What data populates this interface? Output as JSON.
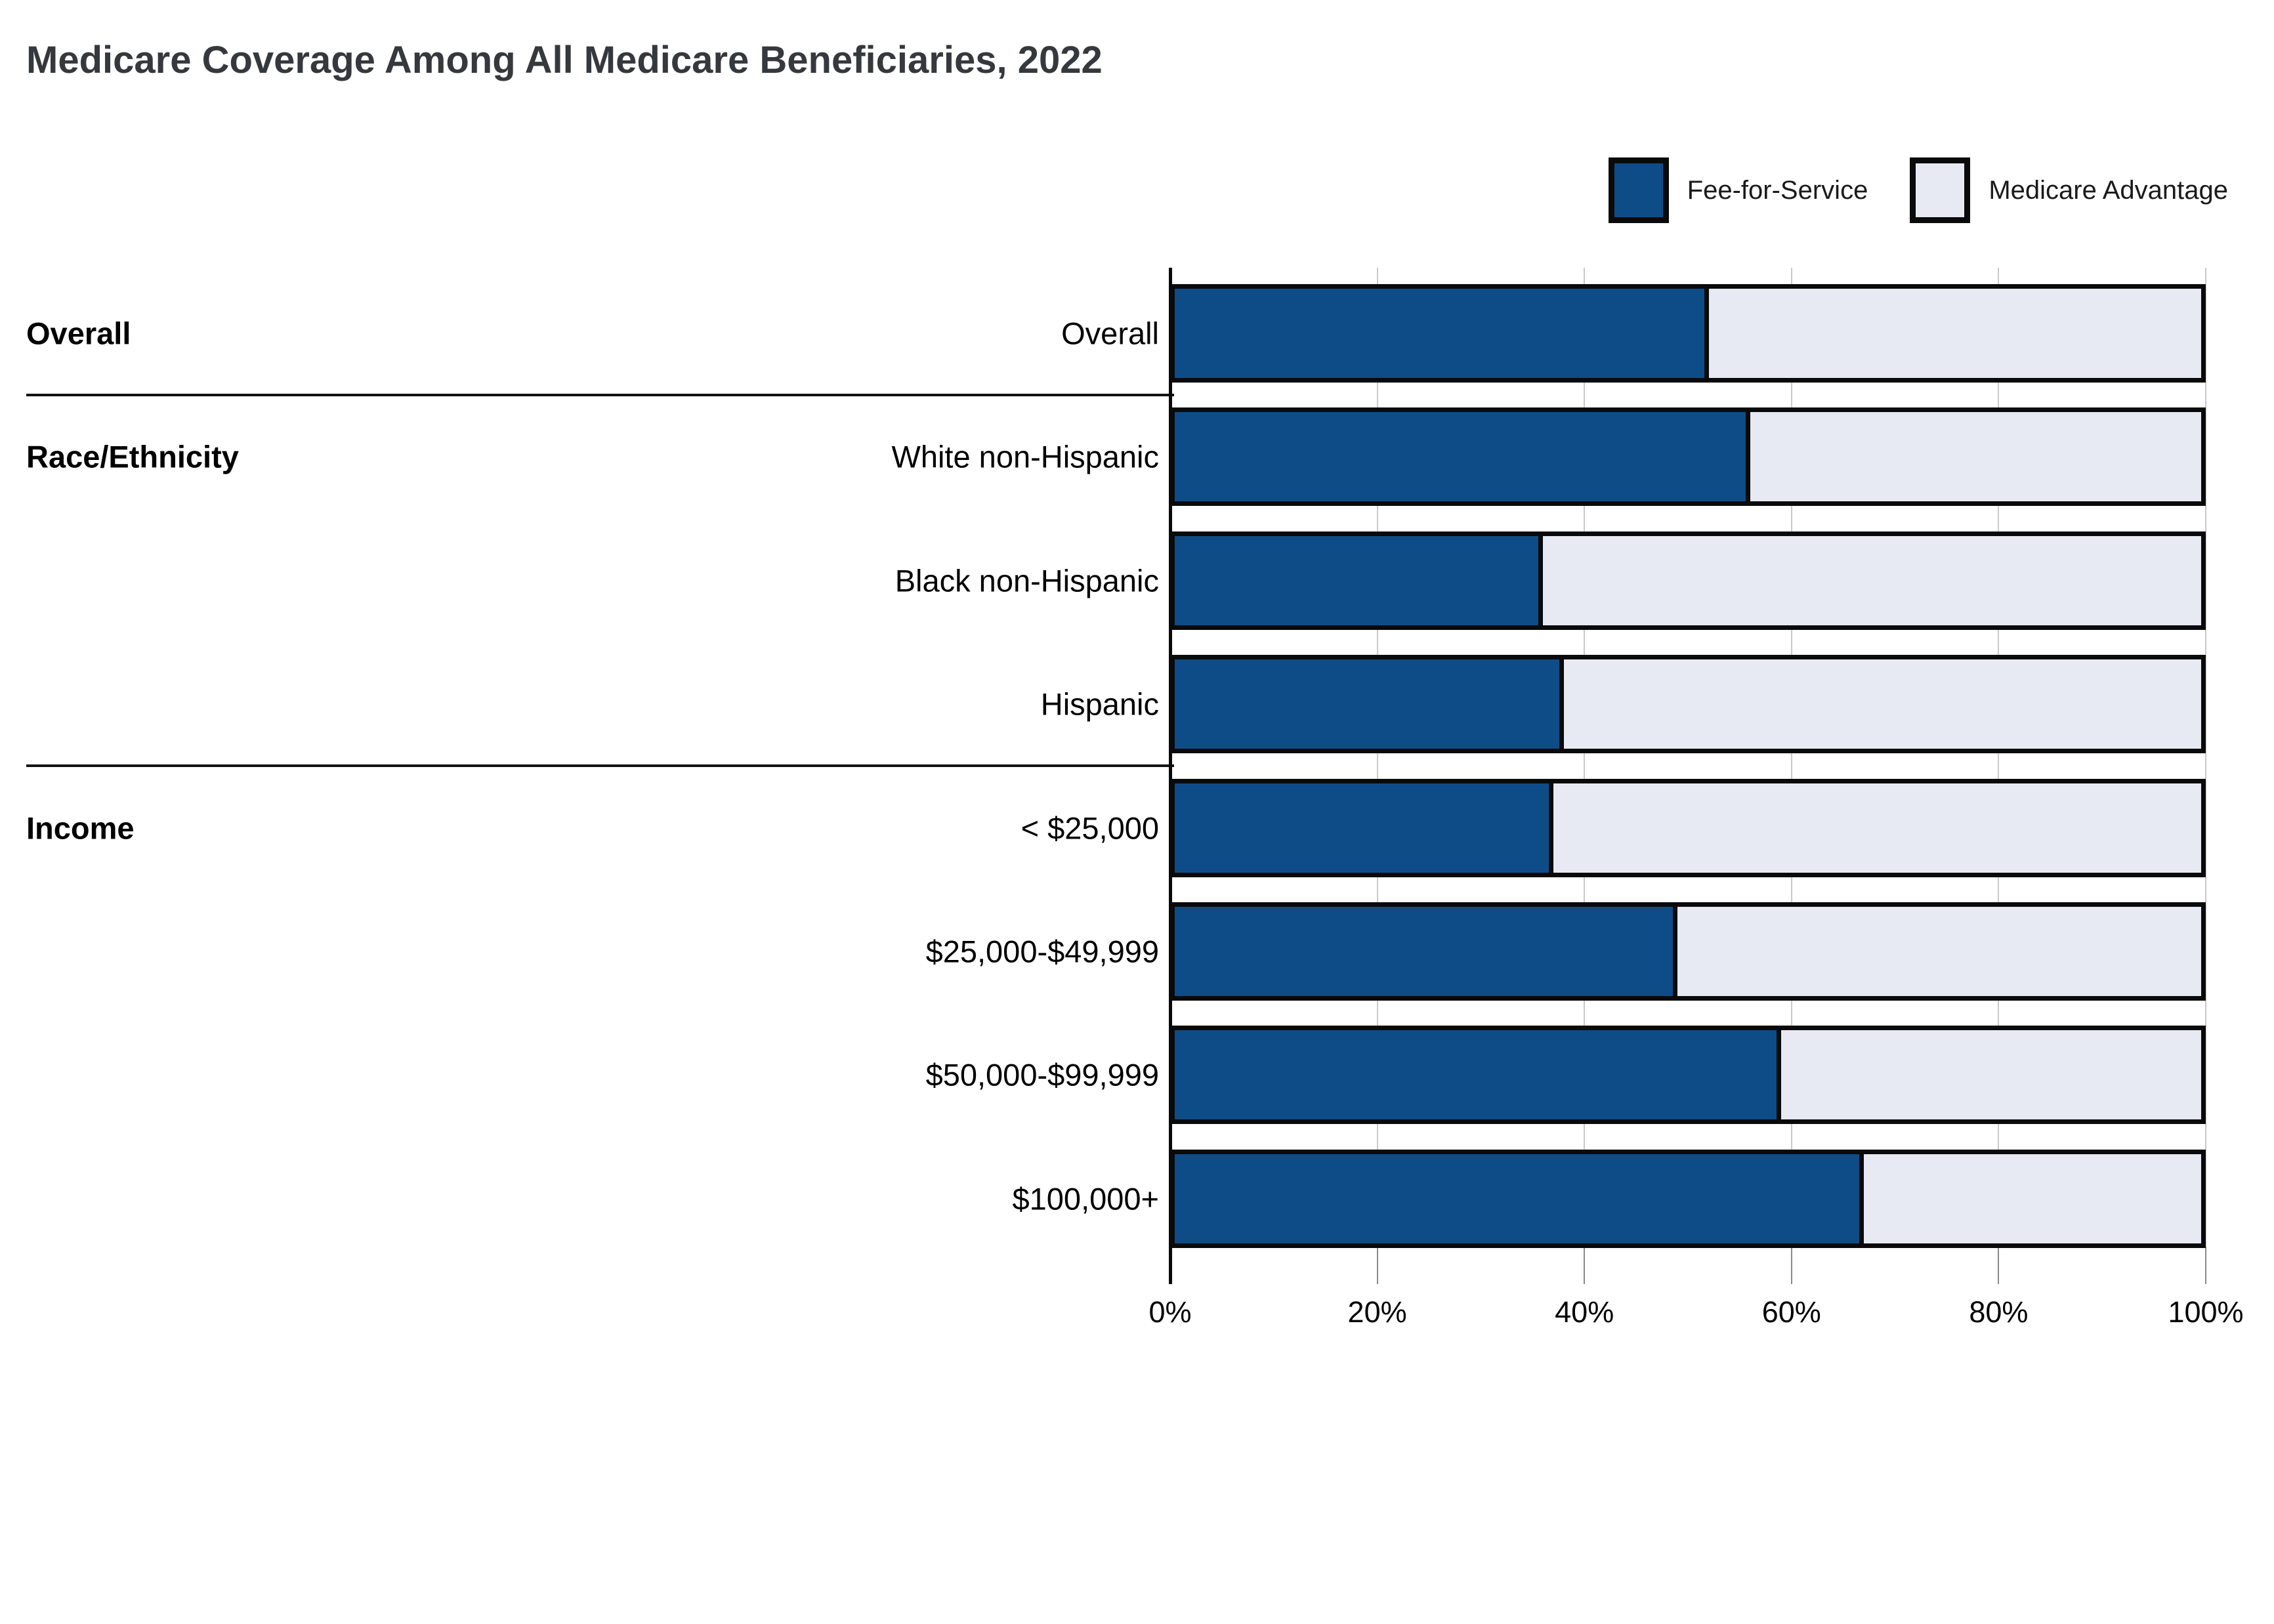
{
  "title": "Medicare Coverage Among All Medicare Beneficiaries, 2022",
  "legend": {
    "position": "top-right",
    "items": [
      {
        "label": "Fee-for-Service",
        "color": "#0e4c87"
      },
      {
        "label": "Medicare Advantage",
        "color": "#e7eaf2"
      }
    ]
  },
  "chart_data": {
    "type": "bar",
    "orientation": "horizontal",
    "stacked": true,
    "unit": "percent",
    "title": "Medicare Coverage Among All Medicare Beneficiaries, 2022",
    "categories": [
      "Overall",
      "White non-Hispanic",
      "Black non-Hispanic",
      "Hispanic",
      "< $25,000",
      "$25,000-$49,999",
      "$50,000-$99,999",
      "$100,000+"
    ],
    "series": [
      {
        "name": "Fee-for-Service",
        "color": "#0e4c87",
        "values": [
          52,
          56,
          36,
          38,
          37,
          49,
          59,
          67
        ]
      },
      {
        "name": "Medicare Advantage",
        "color": "#e7eaf2",
        "values": [
          48,
          44,
          64,
          62,
          63,
          51,
          41,
          33
        ]
      }
    ],
    "sections": [
      {
        "label": "Overall",
        "start_row": 0,
        "end_row": 0
      },
      {
        "label": "Race/Ethnicity",
        "start_row": 1,
        "end_row": 3
      },
      {
        "label": "Income",
        "start_row": 4,
        "end_row": 7
      }
    ],
    "x_axis": {
      "min": 0,
      "max": 100,
      "tick_labels": [
        "0%",
        "20%",
        "40%",
        "60%",
        "80%",
        "100%"
      ],
      "tick_values": [
        0,
        20,
        40,
        60,
        80,
        100
      ]
    },
    "grid": true,
    "legend_position": "top-right",
    "bar_border_color": "#0a0a0a"
  }
}
